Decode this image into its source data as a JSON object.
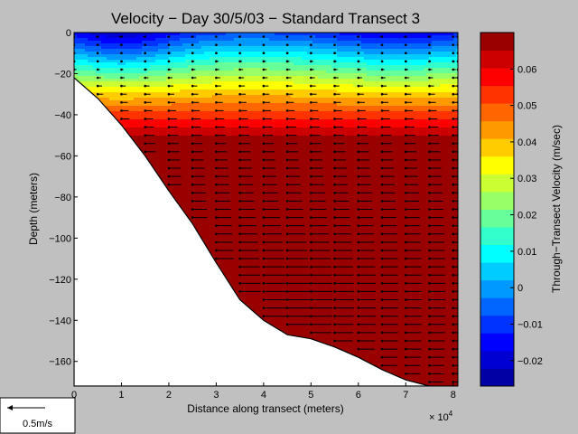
{
  "colors": {
    "figure_bg": "#c0c0c0",
    "colormap_jet": [
      "#00008f",
      "#0000ff",
      "#0080ff",
      "#00ffff",
      "#80ff80",
      "#ffff00",
      "#ff8000",
      "#ff0000",
      "#800000"
    ]
  },
  "chart_data": {
    "type": "heatmap",
    "title": "Velocity − Day 30/5/03 − Standard Transect 3",
    "xlabel": "Distance along transect (meters)",
    "x_multiplier_label": "× 10",
    "x_multiplier_exp": "4",
    "ylabel": "Depth (meters)",
    "xlim": [
      0,
      8.1
    ],
    "ylim": [
      -172,
      0
    ],
    "x_unit_scale": 10000,
    "xticks": [
      0,
      1,
      2,
      3,
      4,
      5,
      6,
      7,
      8
    ],
    "yticks": [
      0,
      -20,
      -40,
      -60,
      -80,
      -100,
      -120,
      -140,
      -160
    ],
    "colorbar": {
      "label": "Through−Transect Velocity (m/sec)",
      "clim": [
        -0.027,
        0.07
      ],
      "ticks": [
        -0.02,
        -0.01,
        0,
        0.01,
        0.02,
        0.03,
        0.04,
        0.05,
        0.06
      ],
      "levels": 20
    },
    "bathymetry": {
      "x": [
        0,
        0.5,
        1,
        1.5,
        2,
        2.5,
        3,
        3.5,
        4,
        4.5,
        5,
        5.5,
        6,
        6.5,
        7,
        7.5,
        8,
        8.1
      ],
      "depth": [
        -22,
        -32,
        -45,
        -60,
        -77,
        -93,
        -112,
        -130,
        -140,
        -147,
        -149,
        -153,
        -158,
        -164,
        -169,
        -172,
        -172,
        -172
      ]
    },
    "velocity_core": {
      "x": 4.3,
      "depth": -130,
      "value": 0.065
    },
    "surface_minimum": {
      "x": 1.0,
      "depth": -5,
      "value": -0.022
    },
    "profile_stations_x": [
      0,
      0.5,
      1,
      1.5,
      2,
      2.5,
      3,
      3.5,
      4,
      4.5,
      5,
      5.5,
      6,
      6.5,
      7,
      7.5,
      8,
      8.1
    ],
    "scale_arrow": {
      "label": "0.5m/s",
      "value": 0.5
    }
  }
}
